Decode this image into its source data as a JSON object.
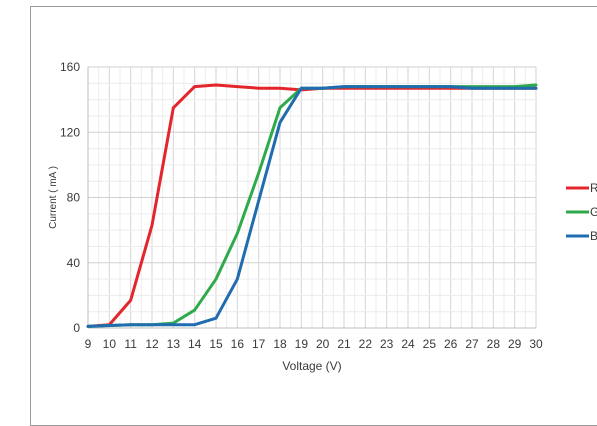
{
  "chart_data": {
    "type": "line",
    "xlabel": "Voltage (V)",
    "ylabel": "Current ( mA )",
    "xlim": [
      9,
      30
    ],
    "ylim": [
      0,
      160
    ],
    "x_ticks": [
      9,
      10,
      11,
      12,
      13,
      14,
      15,
      16,
      17,
      18,
      19,
      20,
      21,
      22,
      23,
      24,
      25,
      26,
      27,
      28,
      29,
      30
    ],
    "y_ticks": [
      0,
      40,
      80,
      120,
      160
    ],
    "grid": true,
    "legend_position": "right",
    "x": [
      9,
      10,
      11,
      12,
      13,
      14,
      15,
      16,
      17,
      18,
      19,
      20,
      21,
      22,
      23,
      24,
      25,
      26,
      27,
      28,
      29,
      30
    ],
    "series": [
      {
        "name": "R",
        "color": "#e3262c",
        "values": [
          1,
          2,
          17,
          63,
          135,
          148,
          149,
          148,
          147,
          147,
          146,
          147,
          147,
          147,
          147,
          147,
          147,
          147,
          147,
          147,
          147,
          147
        ]
      },
      {
        "name": "G",
        "color": "#2eaa4a",
        "values": [
          1,
          1.5,
          2,
          2,
          3,
          11,
          30,
          58,
          95,
          135,
          147,
          147,
          148,
          148,
          148,
          148,
          148,
          148,
          148,
          148,
          148,
          149
        ]
      },
      {
        "name": "B",
        "color": "#1f6cb0",
        "values": [
          1,
          1.5,
          2,
          2,
          2,
          2,
          6,
          30,
          78,
          126,
          147,
          147,
          148,
          148,
          148,
          148,
          148,
          148,
          147,
          147,
          147,
          147
        ]
      }
    ]
  }
}
